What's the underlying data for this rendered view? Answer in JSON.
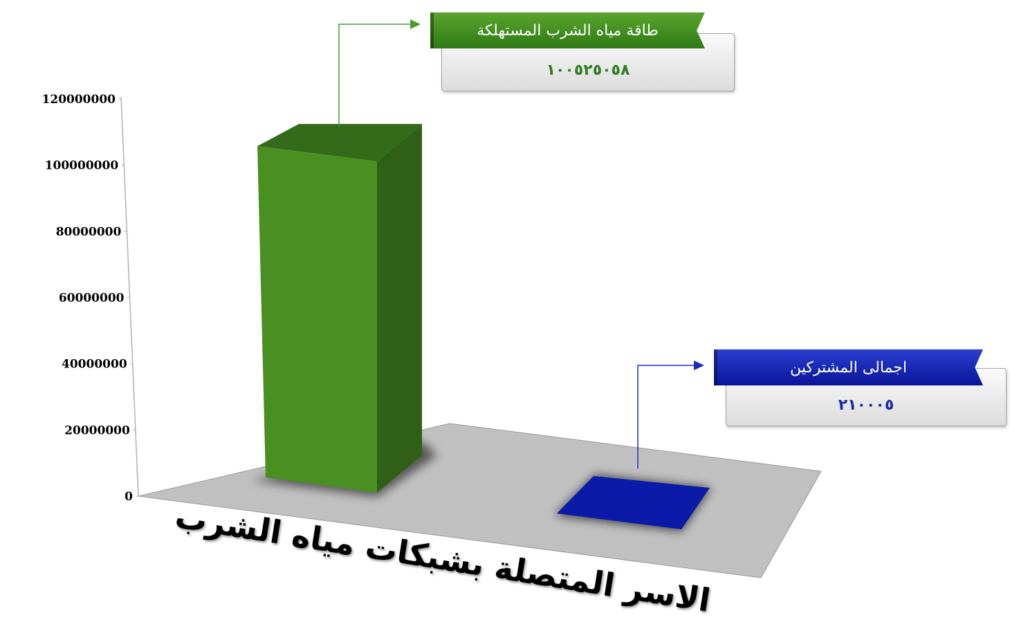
{
  "chart_data": {
    "type": "bar",
    "title": "الاسر المتصلة بشبكات مياه الشرب",
    "categories": [
      "طاقة مياه الشرب المستهلكة",
      "اجمالى المشتركين"
    ],
    "values": [
      100525058,
      210005
    ],
    "ylim": [
      0,
      120000000
    ],
    "yticks": [
      "0",
      "20000000",
      "40000000",
      "60000000",
      "80000000",
      "100000000",
      "120000000"
    ],
    "grid": false,
    "style": "3d-column",
    "colors": [
      "#4a8f22",
      "#0b1aa8"
    ]
  },
  "callouts": [
    {
      "label": "طاقة مياه الشرب المستهلكة",
      "value": "١٠٠٥٢٥٠٥٨",
      "ribbon_color": "#3d8b1f",
      "value_color": "#2e7d1f"
    },
    {
      "label": "اجمالى المشتركين",
      "value": "٢١٠٠٠٥",
      "ribbon_color": "#0b18b8",
      "value_color": "#1a2ba8"
    }
  ]
}
